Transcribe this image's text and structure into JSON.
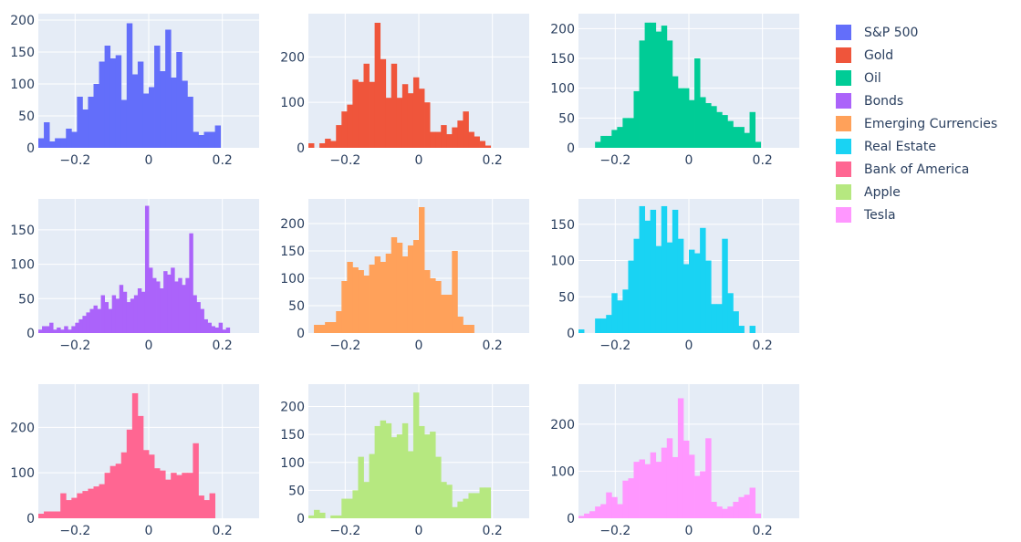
{
  "chart_data": [
    {
      "type": "bar",
      "series_name": "S&P 500",
      "color": "#636efa",
      "x_start": -0.3,
      "bin_width": 0.015,
      "values": [
        15,
        40,
        10,
        15,
        15,
        30,
        25,
        80,
        60,
        80,
        100,
        135,
        160,
        140,
        145,
        75,
        195,
        115,
        135,
        85,
        95,
        160,
        120,
        185,
        110,
        150,
        105,
        80,
        25,
        20,
        25,
        25,
        35
      ],
      "xlim": [
        -0.3,
        0.3
      ],
      "ylim": [
        0,
        210
      ],
      "x_ticks": [
        -0.2,
        0,
        0.2
      ],
      "x_tick_labels": [
        "−0.2",
        "0",
        "0.2"
      ],
      "y_ticks": [
        0,
        50,
        100,
        150,
        200
      ],
      "y_tick_labels": [
        "0",
        "50",
        "100",
        "150",
        "200"
      ]
    },
    {
      "type": "bar",
      "series_name": "Gold",
      "color": "#ef553b",
      "x_start": -0.3,
      "bin_width": 0.015,
      "values": [
        10,
        0,
        10,
        20,
        15,
        50,
        80,
        95,
        150,
        145,
        185,
        145,
        275,
        195,
        110,
        185,
        110,
        140,
        120,
        155,
        130,
        100,
        35,
        35,
        50,
        30,
        45,
        60,
        80,
        35,
        25,
        15,
        5
      ],
      "xlim": [
        -0.3,
        0.3
      ],
      "ylim": [
        0,
        295
      ],
      "x_ticks": [
        -0.2,
        0,
        0.2
      ],
      "x_tick_labels": [
        "−0.2",
        "0",
        "0.2"
      ],
      "y_ticks": [
        0,
        100,
        200
      ],
      "y_tick_labels": [
        "0",
        "100",
        "200"
      ]
    },
    {
      "type": "bar",
      "series_name": "Oil",
      "color": "#00cc96",
      "x_start": -0.255,
      "bin_width": 0.015,
      "values": [
        10,
        20,
        20,
        30,
        35,
        50,
        50,
        95,
        180,
        210,
        210,
        195,
        205,
        180,
        120,
        100,
        100,
        80,
        150,
        85,
        75,
        70,
        60,
        55,
        45,
        35,
        35,
        25,
        60,
        10
      ],
      "xlim": [
        -0.3,
        0.3
      ],
      "ylim": [
        0,
        225
      ],
      "x_ticks": [
        -0.2,
        0,
        0.2
      ],
      "x_tick_labels": [
        "−0.2",
        "0",
        "0.2"
      ],
      "y_ticks": [
        0,
        50,
        100,
        150,
        200
      ],
      "y_tick_labels": [
        "0",
        "50",
        "100",
        "150",
        "200"
      ]
    },
    {
      "type": "bar",
      "series_name": "Bonds",
      "color": "#ab63fa",
      "x_start": -0.3,
      "bin_width": 0.01,
      "values": [
        5,
        10,
        10,
        15,
        5,
        8,
        5,
        10,
        5,
        10,
        15,
        20,
        25,
        30,
        35,
        40,
        35,
        55,
        45,
        35,
        55,
        50,
        70,
        60,
        45,
        50,
        55,
        65,
        60,
        185,
        95,
        80,
        75,
        65,
        90,
        85,
        95,
        75,
        80,
        70,
        80,
        145,
        55,
        45,
        35,
        20,
        15,
        10,
        8,
        15,
        5,
        8
      ],
      "xlim": [
        -0.3,
        0.3
      ],
      "ylim": [
        0,
        195
      ],
      "x_ticks": [
        -0.2,
        0,
        0.2
      ],
      "x_tick_labels": [
        "−0.2",
        "0",
        "0.2"
      ],
      "y_ticks": [
        0,
        50,
        100,
        150
      ],
      "y_tick_labels": [
        "0",
        "50",
        "100",
        "150"
      ]
    },
    {
      "type": "bar",
      "series_name": "Emerging Currencies",
      "color": "#ffa15a",
      "x_start": -0.285,
      "bin_width": 0.015,
      "values": [
        15,
        15,
        20,
        20,
        40,
        95,
        130,
        120,
        115,
        105,
        125,
        140,
        130,
        145,
        175,
        165,
        140,
        160,
        170,
        230,
        115,
        100,
        95,
        70,
        70,
        150,
        30,
        15,
        15
      ],
      "xlim": [
        -0.3,
        0.3
      ],
      "ylim": [
        0,
        245
      ],
      "x_ticks": [
        -0.2,
        0,
        0.2
      ],
      "x_tick_labels": [
        "−0.2",
        "0",
        "0.2"
      ],
      "y_ticks": [
        0,
        50,
        100,
        150,
        200
      ],
      "y_tick_labels": [
        "0",
        "50",
        "100",
        "150",
        "200"
      ]
    },
    {
      "type": "bar",
      "series_name": "Real Estate",
      "color": "#19d3f3",
      "x_start": -0.3,
      "bin_width": 0.015,
      "values": [
        5,
        0,
        0,
        20,
        20,
        25,
        55,
        45,
        60,
        100,
        130,
        175,
        155,
        170,
        120,
        175,
        125,
        170,
        130,
        95,
        115,
        110,
        145,
        100,
        40,
        40,
        130,
        55,
        30,
        10,
        0,
        10
      ],
      "xlim": [
        -0.3,
        0.3
      ],
      "ylim": [
        0,
        185
      ],
      "x_ticks": [
        -0.2,
        0,
        0.2
      ],
      "x_tick_labels": [
        "−0.2",
        "0",
        "0.2"
      ],
      "y_ticks": [
        0,
        50,
        100,
        150
      ],
      "y_tick_labels": [
        "0",
        "50",
        "100",
        "150"
      ]
    },
    {
      "type": "bar",
      "series_name": "Bank of America",
      "color": "#ff6692",
      "x_start": -0.3,
      "bin_width": 0.015,
      "values": [
        10,
        15,
        15,
        15,
        55,
        40,
        45,
        55,
        60,
        65,
        70,
        75,
        100,
        115,
        120,
        145,
        195,
        275,
        225,
        150,
        140,
        110,
        105,
        85,
        100,
        95,
        100,
        100,
        165,
        50,
        40,
        55
      ],
      "xlim": [
        -0.3,
        0.3
      ],
      "ylim": [
        0,
        295
      ],
      "x_ticks": [
        -0.2,
        0,
        0.2
      ],
      "x_tick_labels": [
        "−0.2",
        "0",
        "0.2"
      ],
      "y_ticks": [
        0,
        100,
        200
      ],
      "y_tick_labels": [
        "0",
        "100",
        "200"
      ]
    },
    {
      "type": "bar",
      "series_name": "Apple",
      "color": "#b6e880",
      "x_start": -0.3,
      "bin_width": 0.015,
      "values": [
        5,
        15,
        10,
        0,
        5,
        5,
        35,
        35,
        50,
        110,
        65,
        115,
        165,
        175,
        170,
        145,
        150,
        170,
        120,
        225,
        165,
        150,
        155,
        110,
        65,
        60,
        20,
        30,
        35,
        45,
        45,
        55,
        55
      ],
      "xlim": [
        -0.3,
        0.3
      ],
      "ylim": [
        0,
        240
      ],
      "x_ticks": [
        -0.2,
        0,
        0.2
      ],
      "x_tick_labels": [
        "−0.2",
        "0",
        "0.2"
      ],
      "y_ticks": [
        0,
        50,
        100,
        150,
        200
      ],
      "y_tick_labels": [
        "0",
        "50",
        "100",
        "150",
        "200"
      ]
    },
    {
      "type": "bar",
      "series_name": "Tesla",
      "color": "#ff97ff",
      "x_start": -0.3,
      "bin_width": 0.015,
      "values": [
        5,
        10,
        15,
        25,
        30,
        55,
        45,
        30,
        80,
        85,
        120,
        125,
        115,
        140,
        120,
        150,
        170,
        130,
        255,
        165,
        135,
        90,
        100,
        170,
        35,
        25,
        20,
        25,
        35,
        45,
        50,
        65,
        10
      ],
      "xlim": [
        -0.3,
        0.3
      ],
      "ylim": [
        0,
        285
      ],
      "x_ticks": [
        -0.2,
        0,
        0.2
      ],
      "x_tick_labels": [
        "−0.2",
        "0",
        "0.2"
      ],
      "y_ticks": [
        0,
        100,
        200
      ],
      "y_tick_labels": [
        "0",
        "100",
        "200"
      ]
    }
  ],
  "legend": {
    "items": [
      {
        "label": "S&P 500",
        "color": "#636efa"
      },
      {
        "label": "Gold",
        "color": "#ef553b"
      },
      {
        "label": "Oil",
        "color": "#00cc96"
      },
      {
        "label": "Bonds",
        "color": "#ab63fa"
      },
      {
        "label": "Emerging Currencies",
        "color": "#ffa15a"
      },
      {
        "label": "Real Estate",
        "color": "#19d3f3"
      },
      {
        "label": "Bank of America",
        "color": "#ff6692"
      },
      {
        "label": "Apple",
        "color": "#b6e880"
      },
      {
        "label": "Tesla",
        "color": "#ff97ff"
      }
    ]
  },
  "style": {
    "plot_bg": "#e5ecf6",
    "grid_color": "#ffffff",
    "text_color": "#2a3f5f"
  }
}
